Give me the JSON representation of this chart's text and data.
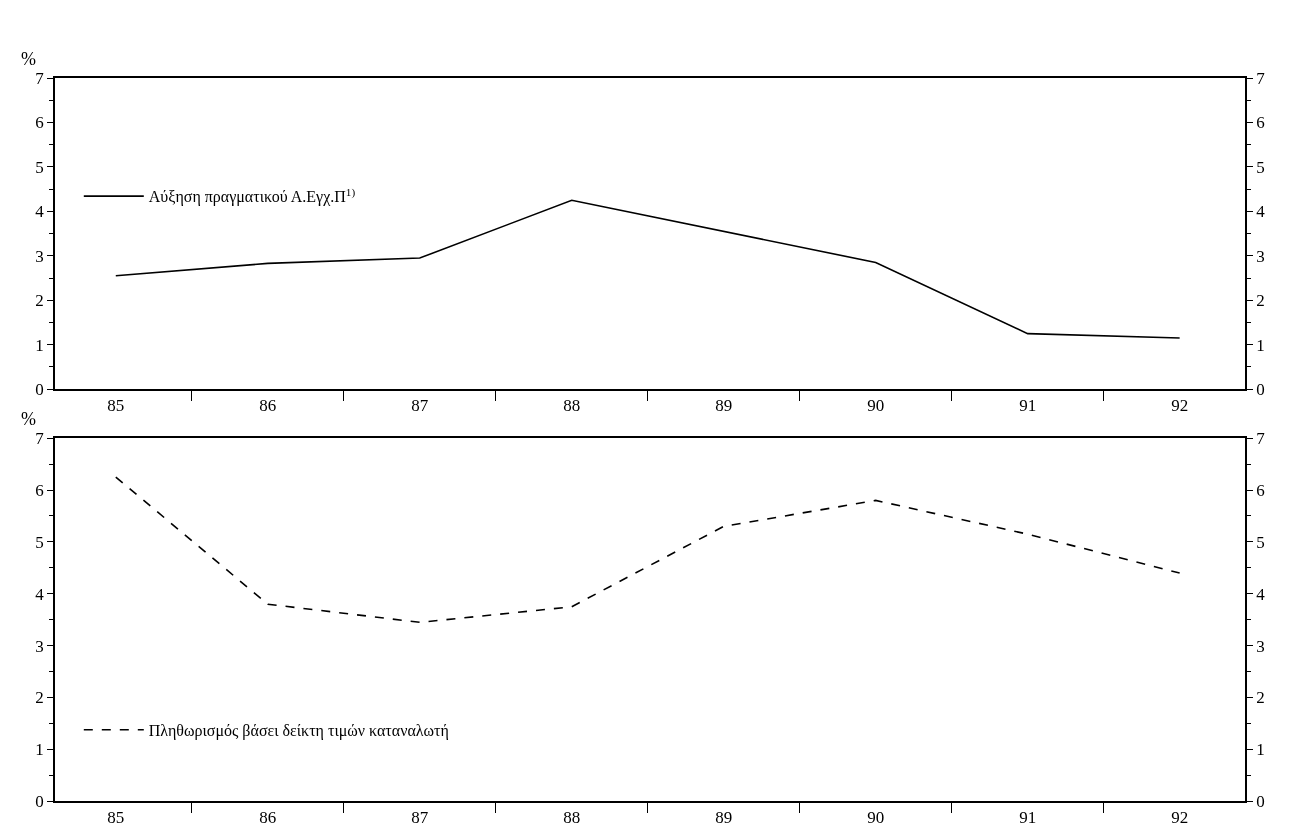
{
  "chart_data": [
    {
      "type": "line",
      "ylabel": "%",
      "x": [
        85,
        86,
        87,
        88,
        90,
        91,
        92
      ],
      "xlim": [
        84.6,
        92.43
      ],
      "xticks": [
        85,
        {
          "value": 85.5,
          "label": null
        },
        86,
        {
          "value": 86.5,
          "label": null
        },
        87,
        {
          "value": 87.5,
          "label": null
        },
        88,
        {
          "value": 88.5,
          "label": null
        },
        89,
        {
          "value": 89.5,
          "label": null
        },
        90,
        {
          "value": 90.5,
          "label": null
        },
        91,
        {
          "value": 91.5,
          "label": null
        },
        92
      ],
      "ylim": [
        0,
        7
      ],
      "yticks": [
        0,
        {
          "value": 0.5,
          "label": null
        },
        1,
        {
          "value": 1.5,
          "label": null
        },
        2,
        {
          "value": 2.5,
          "label": null
        },
        3,
        {
          "value": 3.5,
          "label": null
        },
        4,
        {
          "value": 4.5,
          "label": null
        },
        5,
        {
          "value": 5.5,
          "label": null
        },
        6,
        {
          "value": 6.5,
          "label": null
        },
        7
      ],
      "y2lim": [
        0,
        7
      ],
      "y2ticks": [
        0,
        {
          "value": 0.5,
          "label": null
        },
        1,
        {
          "value": 1.5,
          "label": null
        },
        2,
        {
          "value": 2.5,
          "label": null
        },
        3,
        {
          "value": 3.5,
          "label": null
        },
        4,
        {
          "value": 4.5,
          "label": null
        },
        5,
        {
          "value": 5.5,
          "label": null
        },
        6,
        {
          "value": 6.5,
          "label": null
        },
        7
      ],
      "series": [
        {
          "name": "Αύξηση πραγματικού Α.Εγχ.Π$^{1)}$",
          "color": "#000000",
          "line_style": "solid",
          "values": [
            2.55,
            2.83,
            2.95,
            4.25,
            2.85,
            1.25,
            1.15
          ]
        }
      ],
      "legend": "left",
      "marker": "none"
    },
    {
      "type": "line",
      "ylabel": "%",
      "x": [
        85,
        86,
        87,
        88,
        89,
        90,
        91,
        92
      ],
      "xlim": [
        84.6,
        92.43
      ],
      "xticks": [
        85,
        {
          "value": 85.5,
          "label": null
        },
        86,
        {
          "value": 86.5,
          "label": null
        },
        87,
        {
          "value": 87.5,
          "label": null
        },
        88,
        {
          "value": 88.5,
          "label": null
        },
        89,
        {
          "value": 89.5,
          "label": null
        },
        90,
        {
          "value": 90.5,
          "label": null
        },
        91,
        {
          "value": 91.5,
          "label": null
        },
        92
      ],
      "ylim": [
        0,
        7
      ],
      "yticks": [
        0,
        {
          "value": 0.5,
          "label": null
        },
        1,
        {
          "value": 1.5,
          "label": null
        },
        2,
        {
          "value": 2.5,
          "label": null
        },
        3,
        {
          "value": 3.5,
          "label": null
        },
        4,
        {
          "value": 4.5,
          "label": null
        },
        5,
        {
          "value": 5.5,
          "label": null
        },
        6,
        {
          "value": 6.5,
          "label": null
        },
        7
      ],
      "y2lim": [
        0,
        7
      ],
      "y2ticks": [
        0,
        {
          "value": 0.5,
          "label": null
        },
        1,
        {
          "value": 1.5,
          "label": null
        },
        2,
        {
          "value": 2.5,
          "label": null
        },
        3,
        {
          "value": 3.5,
          "label": null
        },
        4,
        {
          "value": 4.5,
          "label": null
        },
        5,
        {
          "value": 5.5,
          "label": null
        },
        6,
        {
          "value": 6.5,
          "label": null
        },
        7
      ],
      "series": [
        {
          "name": "Πληθωρισμός βάσει δείκτη τιμών καταναλωτή",
          "color": "#000000",
          "line_style": "dashed",
          "values": [
            6.25,
            3.8,
            3.45,
            3.75,
            5.3,
            5.8,
            5.15,
            4.4
          ]
        }
      ],
      "legend": "bottom left",
      "marker": "none"
    }
  ]
}
